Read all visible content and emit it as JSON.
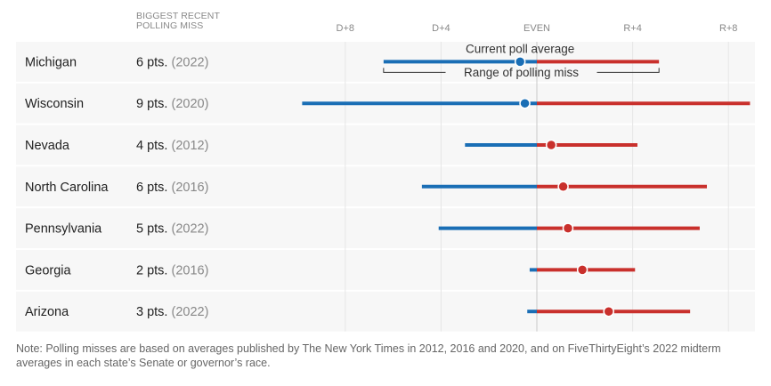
{
  "chart_data": {
    "type": "dot-range",
    "column_header": "BIGGEST RECENT POLLING MISS",
    "column_header_lines": [
      "BIGGEST RECENT",
      "POLLING MISS"
    ],
    "x_ticks": [
      {
        "value": -8,
        "label": "D+8"
      },
      {
        "value": -4,
        "label": "D+4"
      },
      {
        "value": 0,
        "label": "EVEN"
      },
      {
        "value": 4,
        "label": "R+4"
      },
      {
        "value": 8,
        "label": "R+8"
      }
    ],
    "xlim": [
      -10,
      8.6
    ],
    "grid": true,
    "colors": {
      "dem": "#1a6eb5",
      "rep": "#c9302c",
      "row_bg": "#f7f7f7"
    },
    "annotations": {
      "dot": "Current poll average",
      "range": "Range of polling miss"
    },
    "rows": [
      {
        "state": "Michigan",
        "miss": "6 pts.",
        "year": "(2022)",
        "average": -0.7,
        "low": -6.4,
        "high": 5.1
      },
      {
        "state": "Wisconsin",
        "miss": "9 pts.",
        "year": "(2020)",
        "average": -0.5,
        "low": -9.8,
        "high": 8.9
      },
      {
        "state": "Nevada",
        "miss": "4 pts.",
        "year": "(2012)",
        "average": 0.6,
        "low": -3.0,
        "high": 4.2
      },
      {
        "state": "North Carolina",
        "miss": "6 pts.",
        "year": "(2016)",
        "average": 1.1,
        "low": -4.8,
        "high": 7.1
      },
      {
        "state": "Pennsylvania",
        "miss": "5 pts.",
        "year": "(2022)",
        "average": 1.3,
        "low": -4.1,
        "high": 6.8
      },
      {
        "state": "Georgia",
        "miss": "2 pts.",
        "year": "(2016)",
        "average": 1.9,
        "low": -0.3,
        "high": 4.1
      },
      {
        "state": "Arizona",
        "miss": "3 pts.",
        "year": "(2022)",
        "average": 3.0,
        "low": -0.4,
        "high": 6.4
      }
    ]
  },
  "note": "Note: Polling misses are based on averages published by The New York Times in 2012, 2016 and 2020, and on FiveThirtyEight’s 2022 midterm averages in each state’s Senate or governor’s race."
}
